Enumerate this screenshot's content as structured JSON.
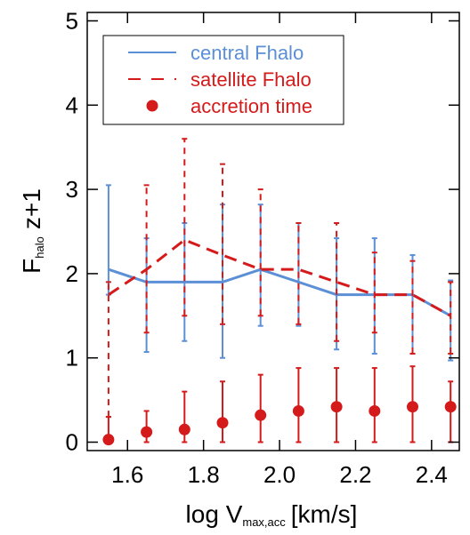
{
  "chart_data": {
    "type": "errorbar",
    "x": [
      1.55,
      1.65,
      1.75,
      1.85,
      1.95,
      2.05,
      2.15,
      2.25,
      2.35,
      2.45
    ],
    "series": [
      {
        "name": "central Fhalo",
        "color": "#5b8fd6",
        "style": "solid",
        "values": [
          2.05,
          1.9,
          1.9,
          1.9,
          2.05,
          1.9,
          1.75,
          1.75,
          1.75,
          1.5
        ],
        "lower": [
          1.75,
          1.07,
          1.2,
          1.0,
          1.38,
          1.38,
          1.1,
          1.05,
          1.05,
          0.97
        ],
        "upper": [
          3.05,
          2.42,
          2.6,
          2.82,
          2.82,
          2.6,
          2.42,
          2.42,
          2.22,
          1.92
        ]
      },
      {
        "name": "satellite Fhalo",
        "color": "#d41a1a",
        "style": "dashed",
        "values": [
          1.75,
          2.05,
          2.4,
          2.22,
          2.05,
          2.05,
          1.9,
          1.75,
          1.75,
          1.5
        ],
        "lower": [
          0.3,
          1.3,
          1.5,
          1.4,
          1.5,
          1.4,
          1.2,
          1.3,
          1.05,
          1.05
        ],
        "upper": [
          1.9,
          3.05,
          3.6,
          3.3,
          3.0,
          2.6,
          2.6,
          2.25,
          2.15,
          1.9
        ]
      },
      {
        "name": "accretion time",
        "color": "#d41a1a",
        "style": "points",
        "values": [
          0.03,
          0.12,
          0.15,
          0.23,
          0.32,
          0.37,
          0.42,
          0.37,
          0.42,
          0.42
        ],
        "lower": [
          0,
          0,
          0,
          0,
          0,
          0,
          0,
          0,
          0,
          0
        ],
        "upper": [
          0.3,
          0.37,
          0.6,
          0.72,
          0.8,
          0.88,
          0.88,
          0.88,
          0.9,
          0.72
        ]
      }
    ],
    "xlim": [
      1.494,
      2.473
    ],
    "ylim": [
      -0.1,
      5.1
    ],
    "xticks": [
      {
        "value": 1.6,
        "label": "1.6"
      },
      {
        "value": 1.8,
        "label": "1.8"
      },
      {
        "value": 2.0,
        "label": "2.0"
      },
      {
        "value": 2.2,
        "label": "2.2"
      },
      {
        "value": 2.4,
        "label": "2.4"
      }
    ],
    "yticks": [
      0,
      1,
      2,
      3,
      4,
      5
    ],
    "xlabel": {
      "main": "log V",
      "sub": "max,acc",
      "unit": "[km/s]"
    },
    "ylabel": {
      "main": "F",
      "sub": "halo",
      "unit": "z+1"
    },
    "legend": "upper left",
    "grid": false
  }
}
